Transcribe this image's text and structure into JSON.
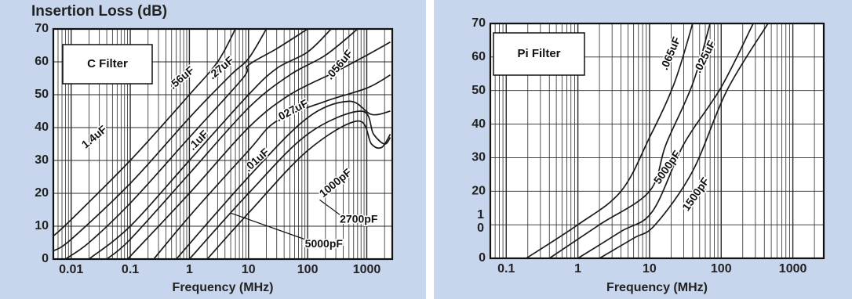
{
  "colors": {
    "panel_bg": "#c7d6ec",
    "plot_bg": "#ffffff",
    "line": "#1a1a1a",
    "grid": "#2a2a2a"
  },
  "chart_data": [
    {
      "type": "line",
      "x_scale": "log",
      "title": "Insertion Loss  (dB)",
      "xlabel": "Frequency (MHz)",
      "ylabel": "",
      "xlim": [
        0.005,
        2700
      ],
      "ylim": [
        0,
        70
      ],
      "grid": true,
      "box_label": "C Filter",
      "x_ticks": [
        {
          "v": 0.01,
          "label": "0.01"
        },
        {
          "v": 0.1,
          "label": "0.1"
        },
        {
          "v": 1,
          "label": "1"
        },
        {
          "v": 10,
          "label": "10"
        },
        {
          "v": 100,
          "label": "100"
        },
        {
          "v": 1000,
          "label": "1000"
        }
      ],
      "y_ticks": [
        {
          "v": 0,
          "label": "0"
        },
        {
          "v": 10,
          "label": "10"
        },
        {
          "v": 20,
          "label": "20"
        },
        {
          "v": 30,
          "label": "30"
        },
        {
          "v": 40,
          "label": "40"
        },
        {
          "v": 50,
          "label": "50"
        },
        {
          "v": 60,
          "label": "60"
        },
        {
          "v": 70,
          "label": "70"
        }
      ],
      "series": [
        {
          "name": "1.4uF",
          "points": [
            [
              0.005,
              7
            ],
            [
              0.01,
              12
            ],
            [
              0.1,
              30
            ],
            [
              1,
              50
            ],
            [
              3,
              60
            ],
            [
              6,
              70
            ]
          ]
        },
        {
          "name": ".56uF",
          "points": [
            [
              0.005,
              2.5
            ],
            [
              0.01,
              6
            ],
            [
              0.1,
              23
            ],
            [
              1,
              43
            ],
            [
              5,
              56
            ],
            [
              10,
              61
            ],
            [
              20,
              70
            ]
          ]
        },
        {
          "name": ".27uF",
          "points": [
            [
              0.008,
              0
            ],
            [
              0.02,
              5
            ],
            [
              0.1,
              17
            ],
            [
              1,
              37
            ],
            [
              8,
              55
            ],
            [
              10,
              59
            ],
            [
              30,
              64
            ],
            [
              100,
              70
            ]
          ]
        },
        {
          "name": ".1uF",
          "points": [
            [
              0.02,
              0
            ],
            [
              0.1,
              10
            ],
            [
              1,
              30
            ],
            [
              10,
              50
            ],
            [
              30,
              58
            ],
            [
              100,
              63
            ],
            [
              250,
              70
            ]
          ]
        },
        {
          "name": ".056uF",
          "points": [
            [
              0.04,
              0
            ],
            [
              0.1,
              6
            ],
            [
              1,
              26
            ],
            [
              10,
              46
            ],
            [
              50,
              56
            ],
            [
              200,
              62
            ],
            [
              700,
              70
            ]
          ]
        },
        {
          "name": ".027uF",
          "points": [
            [
              0.09,
              0
            ],
            [
              1,
              20
            ],
            [
              10,
              40
            ],
            [
              50,
              50
            ],
            [
              300,
              57
            ],
            [
              1000,
              62
            ],
            [
              2500,
              66
            ]
          ]
        },
        {
          "name": ".01uF",
          "points": [
            [
              0.25,
              0
            ],
            [
              1,
              13
            ],
            [
              10,
              33
            ],
            [
              30,
              42
            ],
            [
              200,
              48
            ],
            [
              1000,
              52
            ],
            [
              2500,
              56
            ]
          ]
        },
        {
          "name": "1000pF",
          "points": [
            [
              2,
              0
            ],
            [
              10,
              14
            ],
            [
              100,
              33
            ],
            [
              700,
              42
            ],
            [
              1200,
              35
            ],
            [
              1800,
              34
            ],
            [
              2500,
              38
            ]
          ]
        },
        {
          "name": "2700pF",
          "points": [
            [
              1,
              0
            ],
            [
              10,
              20
            ],
            [
              100,
              38
            ],
            [
              800,
              45
            ],
            [
              1300,
              38
            ],
            [
              2000,
              35
            ],
            [
              2500,
              37
            ]
          ]
        },
        {
          "name": "5000pF",
          "points": [
            [
              0.6,
              0
            ],
            [
              10,
              25
            ],
            [
              100,
              43
            ],
            [
              500,
              48
            ],
            [
              1200,
              44
            ],
            [
              2500,
              45
            ]
          ]
        }
      ],
      "annotations": [
        {
          "text": "1.4uF",
          "x": 0.025,
          "y": 37,
          "angle": -40
        },
        {
          "text": ".56uF",
          "x": 0.75,
          "y": 55,
          "angle": -40
        },
        {
          "text": ".27uF",
          "x": 3.5,
          "y": 58,
          "angle": -40
        },
        {
          "text": ".1uF",
          "x": 1.45,
          "y": 36,
          "angle": -45
        },
        {
          "text": ".056uF",
          "x": 350,
          "y": 59,
          "angle": -50
        },
        {
          "text": ".027uF",
          "x": 55,
          "y": 45,
          "angle": -28
        },
        {
          "text": ".01uF",
          "x": 14,
          "y": 30,
          "angle": -42
        },
        {
          "text": "1000pF",
          "x": 300,
          "y": 23,
          "angle": -40
        },
        {
          "text": "2700pF",
          "x": 350,
          "y": 12,
          "align": "start"
        },
        {
          "text": "5000pF",
          "x": 90,
          "y": 4.5,
          "align": "start"
        }
      ],
      "leaders": [
        {
          "from": [
            350,
            13.5
          ],
          "to": [
            160,
            18
          ]
        },
        {
          "from": [
            90,
            6
          ],
          "to": [
            5,
            14
          ]
        }
      ]
    },
    {
      "type": "line",
      "x_scale": "log",
      "title": "",
      "xlabel": "Frequency (MHz)",
      "ylabel": "",
      "xlim": [
        0.06,
        2700
      ],
      "ylim": [
        0,
        70
      ],
      "grid": true,
      "box_label": "Pi Filter",
      "x_ticks": [
        {
          "v": 0.1,
          "label": "0.1"
        },
        {
          "v": 1,
          "label": "1"
        },
        {
          "v": 10,
          "label": "10"
        },
        {
          "v": 100,
          "label": "100"
        },
        {
          "v": 1000,
          "label": "1000"
        }
      ],
      "y_ticks": [
        {
          "v": 0,
          "label": "0"
        },
        {
          "v": 10,
          "label": "1\n0"
        },
        {
          "v": 20,
          "label": "20"
        },
        {
          "v": 30,
          "label": "30"
        },
        {
          "v": 40,
          "label": "40"
        },
        {
          "v": 50,
          "label": "50"
        },
        {
          "v": 60,
          "label": "60"
        },
        {
          "v": 70,
          "label": "70"
        }
      ],
      "series": [
        {
          "name": ".065uF",
          "points": [
            [
              0.19,
              0
            ],
            [
              1,
              10
            ],
            [
              4,
              20
            ],
            [
              10,
              36
            ],
            [
              22,
              52
            ],
            [
              40,
              70
            ]
          ]
        },
        {
          "name": ".025uF",
          "points": [
            [
              0.4,
              0
            ],
            [
              2,
              10
            ],
            [
              10,
              20
            ],
            [
              17,
              34
            ],
            [
              40,
              52
            ],
            [
              70,
              70
            ]
          ]
        },
        {
          "name": "5000pF",
          "points": [
            [
              1,
              0
            ],
            [
              4,
              8
            ],
            [
              11,
              14
            ],
            [
              30,
              34
            ],
            [
              100,
              51
            ],
            [
              280,
              70
            ]
          ]
        },
        {
          "name": "1500pF",
          "points": [
            [
              2,
              0
            ],
            [
              6,
              6
            ],
            [
              12,
              10
            ],
            [
              40,
              26
            ],
            [
              120,
              50
            ],
            [
              450,
              70
            ]
          ]
        }
      ],
      "annotations": [
        {
          "text": ".065uF",
          "x": 20,
          "y": 61,
          "angle": -67
        },
        {
          "text": ".025uF",
          "x": 60,
          "y": 60,
          "angle": -63
        },
        {
          "text": "5000pF",
          "x": 18,
          "y": 27,
          "angle": -55
        },
        {
          "text": "1500pF",
          "x": 45,
          "y": 19,
          "angle": -55
        }
      ]
    }
  ]
}
